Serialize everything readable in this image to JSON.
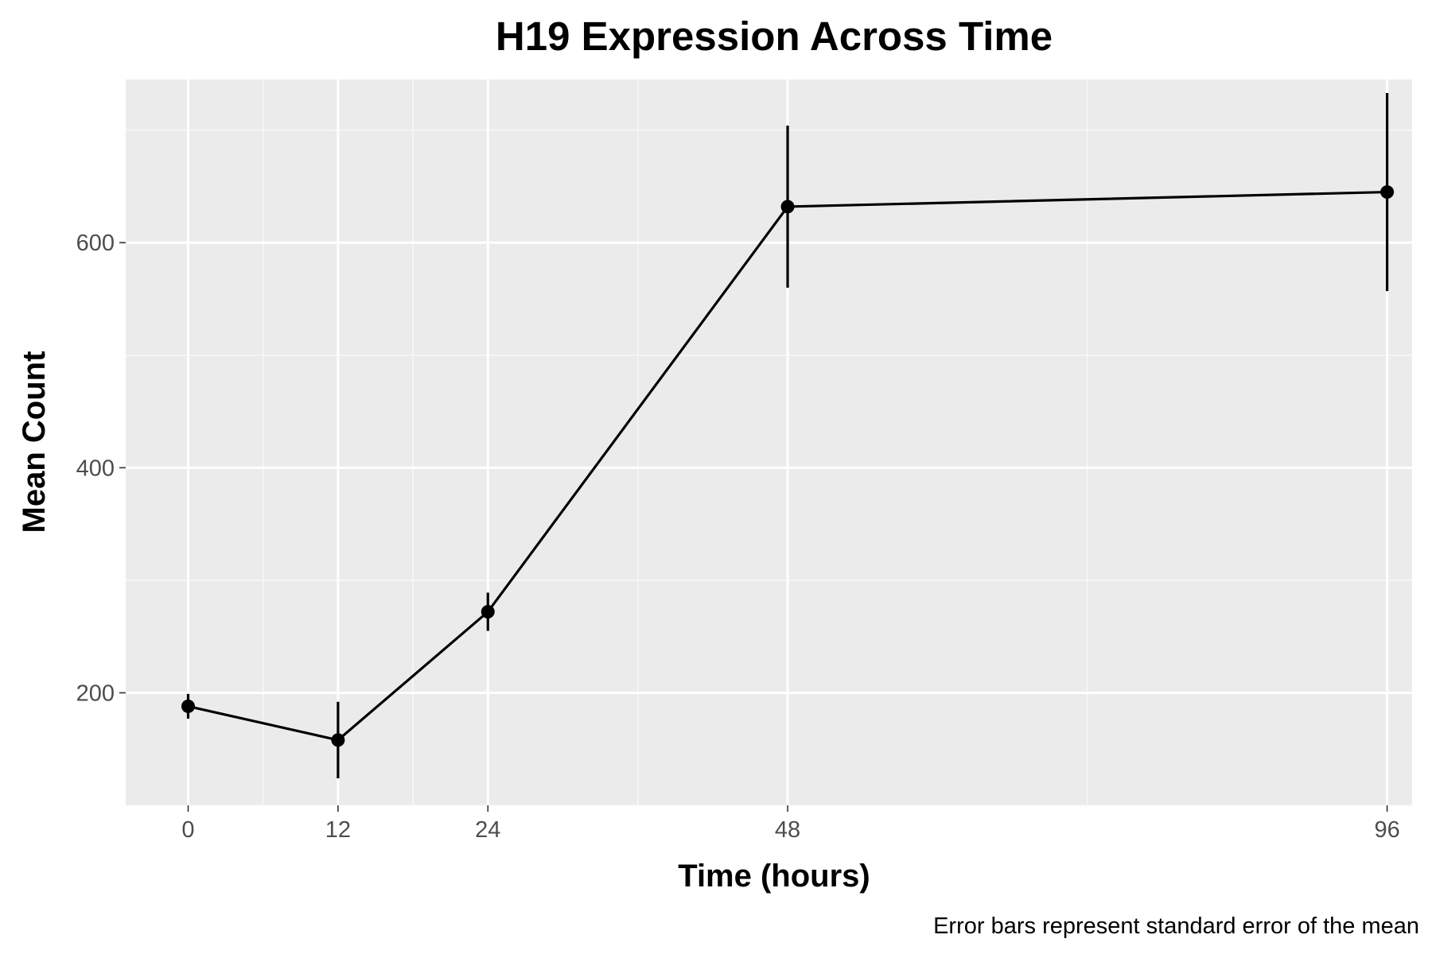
{
  "chart_data": {
    "type": "line",
    "title": "H19 Expression Across Time",
    "xlabel": "Time (hours)",
    "ylabel": "Mean Count",
    "caption": "Error bars represent standard error of the mean",
    "x": [
      0,
      12,
      24,
      48,
      96
    ],
    "x_tick_labels": [
      "0",
      "12",
      "24",
      "48",
      "96"
    ],
    "y_ticks": [
      200,
      400,
      600
    ],
    "y_tick_labels": [
      "200",
      "400",
      "600"
    ],
    "xlim": [
      -5,
      98
    ],
    "ylim": [
      100,
      745
    ],
    "series": [
      {
        "values": [
          188,
          158,
          272,
          632,
          645
        ],
        "error": [
          11,
          34,
          17,
          72,
          88
        ]
      }
    ],
    "grid": true,
    "legend": "none"
  },
  "colors": {
    "panel_background": "#ebebeb",
    "grid_major": "#ffffff",
    "grid_minor": "#f7f7f7",
    "line": "#000000",
    "tick_label": "#4d4d4d"
  }
}
